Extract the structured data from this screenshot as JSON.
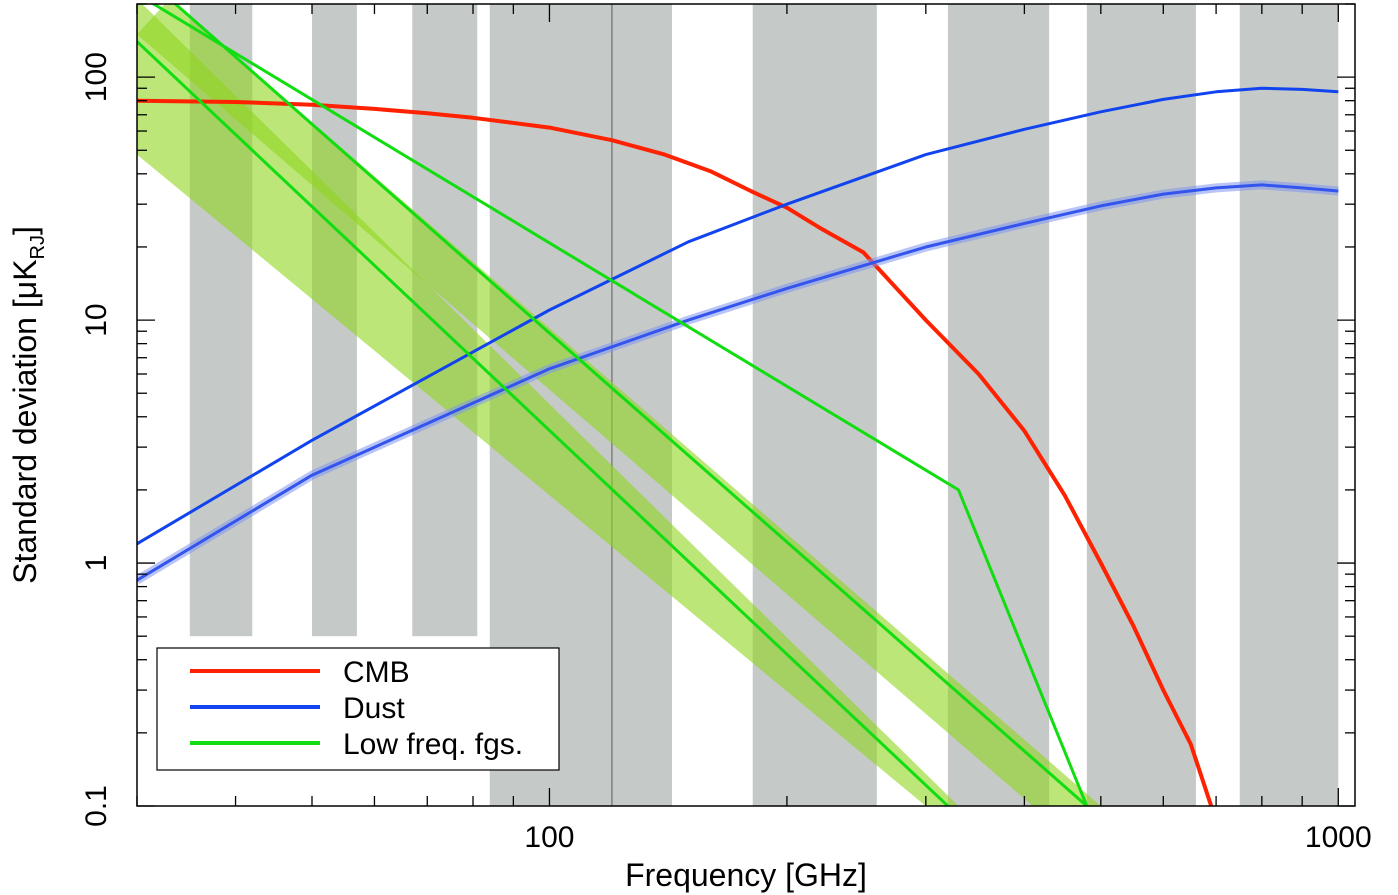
{
  "chart_data": {
    "type": "line",
    "xlabel": "Frequency [GHz]",
    "ylabel_main": "Standard deviation [μK",
    "ylabel_sub": "RJ",
    "ylabel_close": "]",
    "x_scale": "log",
    "y_scale": "log",
    "xlim": [
      30,
      1050
    ],
    "ylim": [
      0.1,
      200
    ],
    "x_ticks": [
      {
        "value": 100,
        "label": "100"
      },
      {
        "value": 1000,
        "label": "1000"
      }
    ],
    "y_ticks": [
      {
        "value": 0.1,
        "label": "0.1"
      },
      {
        "value": 1,
        "label": "1"
      },
      {
        "value": 10,
        "label": "10"
      },
      {
        "value": 100,
        "label": "100"
      }
    ],
    "reference_line_x": 120,
    "frequency_bands": [
      {
        "x0": 35,
        "x1": 42,
        "y0": 0.5
      },
      {
        "x0": 50,
        "x1": 57,
        "y0": 0.5
      },
      {
        "x0": 67,
        "x1": 81,
        "y0": 0.5
      },
      {
        "x0": 84,
        "x1": 143,
        "y0": 0.1
      },
      {
        "x0": 181,
        "x1": 260,
        "y0": 0.1
      },
      {
        "x0": 320,
        "x1": 430,
        "y0": 0.1
      },
      {
        "x0": 480,
        "x1": 660,
        "y0": 0.1
      },
      {
        "x0": 750,
        "x1": 1000,
        "y0": 0.1
      }
    ],
    "bands_fill": [
      {
        "name": "synchrotron-band",
        "lower": [
          [
            30,
            48
          ],
          [
            300,
            0.1
          ]
        ],
        "upper": [
          [
            30,
            210
          ],
          [
            330,
            0.1
          ]
        ]
      },
      {
        "name": "free-free-band",
        "lower": [
          [
            30,
            150
          ],
          [
            410,
            0.1
          ]
        ],
        "upper": [
          [
            33,
            210
          ],
          [
            500,
            0.1
          ]
        ]
      }
    ],
    "series": [
      {
        "name": "CMB",
        "color": "#ff2200",
        "points": [
          [
            30,
            80
          ],
          [
            40,
            79
          ],
          [
            50,
            77
          ],
          [
            60,
            74
          ],
          [
            70,
            71
          ],
          [
            80,
            68
          ],
          [
            100,
            62
          ],
          [
            120,
            55
          ],
          [
            140,
            48
          ],
          [
            160,
            41
          ],
          [
            180,
            34
          ],
          [
            200,
            29
          ],
          [
            220,
            24
          ],
          [
            250,
            19
          ],
          [
            300,
            10
          ],
          [
            350,
            6
          ],
          [
            400,
            3.5
          ],
          [
            450,
            1.9
          ],
          [
            500,
            1.0
          ],
          [
            550,
            0.55
          ],
          [
            600,
            0.3
          ],
          [
            650,
            0.18
          ],
          [
            690,
            0.1
          ]
        ]
      },
      {
        "name": "Dust",
        "color": "#1144ee",
        "points": [
          [
            30,
            1.2
          ],
          [
            50,
            3.2
          ],
          [
            100,
            11
          ],
          [
            150,
            21
          ],
          [
            200,
            30
          ],
          [
            300,
            48
          ],
          [
            400,
            61
          ],
          [
            500,
            72
          ],
          [
            600,
            81
          ],
          [
            700,
            87
          ],
          [
            800,
            90
          ],
          [
            900,
            89
          ],
          [
            1000,
            87
          ]
        ]
      },
      {
        "name": "",
        "color": "#3355ee",
        "points": [
          [
            30,
            0.85
          ],
          [
            50,
            2.3
          ],
          [
            100,
            6.3
          ],
          [
            150,
            10
          ],
          [
            200,
            13.5
          ],
          [
            300,
            20
          ],
          [
            400,
            25
          ],
          [
            500,
            29.5
          ],
          [
            600,
            33
          ],
          [
            700,
            35
          ],
          [
            800,
            36
          ],
          [
            900,
            35
          ],
          [
            1000,
            34
          ]
        ]
      },
      {
        "name": "Low freq. fgs.",
        "color": "#11dd11",
        "points": [
          [
            30,
            140
          ],
          [
            320,
            0.1
          ]
        ]
      },
      {
        "name": "",
        "color": "#11dd11",
        "points": [
          [
            33,
            210
          ],
          [
            480,
            0.1
          ]
        ]
      },
      {
        "name": "",
        "color": "#11dd11",
        "points": [
          [
            30,
            220
          ],
          [
            330,
            2
          ],
          [
            480,
            0.1
          ]
        ]
      }
    ],
    "legend": {
      "placement": "bottom-left",
      "entries": [
        "CMB",
        "Dust",
        "Low freq. fgs."
      ]
    }
  }
}
